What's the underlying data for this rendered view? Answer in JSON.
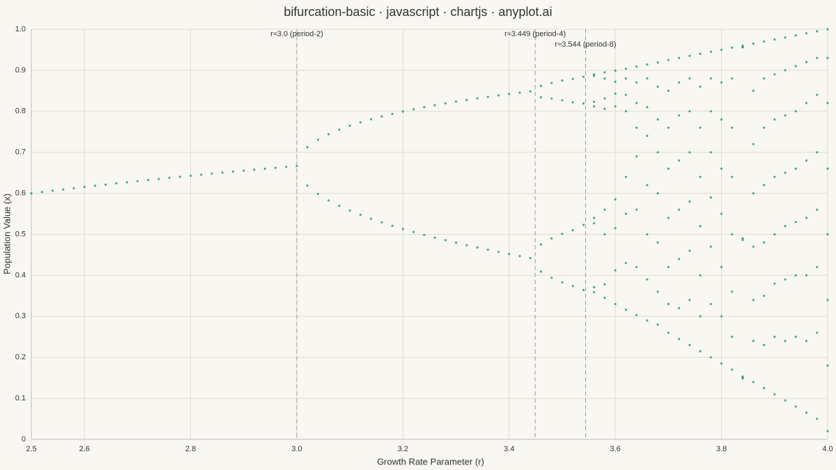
{
  "chart_data": {
    "type": "scatter",
    "title": "bifurcation-basic · javascript · chartjs · anyplot.ai",
    "x_label": "Growth Rate Parameter (r)",
    "y_label": "Population Value (x)",
    "color": "#1a9873",
    "grid": true,
    "xlim": [
      2.5,
      4.0
    ],
    "ylim": [
      0,
      1.0
    ],
    "xticks": [
      2.5,
      2.6,
      2.8,
      {
        "value": 3,
        "label": "3.0"
      },
      3.2,
      3.4,
      3.6,
      3.8,
      {
        "value": 4,
        "label": "4.0"
      }
    ],
    "yticks": [
      0,
      0.1,
      0.2,
      0.3,
      0.4,
      0.5,
      0.6,
      0.7,
      0.8,
      0.9,
      {
        "value": 1,
        "label": "1.0"
      }
    ],
    "annotations": [
      {
        "x": 3.0,
        "label": "r≈3.0 (period-2)"
      },
      {
        "x": 3.449,
        "label": "r≈3.449 (period-4)"
      },
      {
        "x": 3.544,
        "label": "r≈3.544 (period-8)"
      }
    ],
    "x": [
      2.5,
      2.52,
      2.54,
      2.56,
      2.58,
      2.6,
      2.62,
      2.64,
      2.66,
      2.68,
      2.7,
      2.72,
      2.74,
      2.76,
      2.78,
      2.8,
      2.82,
      2.84,
      2.86,
      2.88,
      2.9,
      2.92,
      2.94,
      2.96,
      2.98,
      3.0,
      3.02,
      3.02,
      3.04,
      3.04,
      3.06,
      3.06,
      3.08,
      3.08,
      3.1,
      3.1,
      3.12,
      3.12,
      3.14,
      3.14,
      3.16,
      3.16,
      3.18,
      3.18,
      3.2,
      3.2,
      3.22,
      3.22,
      3.24,
      3.24,
      3.26,
      3.26,
      3.28,
      3.28,
      3.3,
      3.3,
      3.32,
      3.32,
      3.34,
      3.34,
      3.36,
      3.36,
      3.38,
      3.38,
      3.4,
      3.4,
      3.42,
      3.42,
      3.44,
      3.44,
      3.46,
      3.46,
      3.46,
      3.46,
      3.48,
      3.48,
      3.48,
      3.48,
      3.5,
      3.5,
      3.5,
      3.5,
      3.52,
      3.52,
      3.52,
      3.52,
      3.54,
      3.54,
      3.54,
      3.54,
      3.56,
      3.56,
      3.56,
      3.56,
      3.56,
      3.56,
      3.56,
      3.56,
      3.58,
      3.58,
      3.58,
      3.58,
      3.58,
      3.58,
      3.58,
      3.58,
      3.6,
      3.6,
      3.6,
      3.6,
      3.6,
      3.6,
      3.6,
      3.6,
      3.62,
      3.62,
      3.62,
      3.62,
      3.62,
      3.62,
      3.62,
      3.62,
      3.64,
      3.64,
      3.64,
      3.64,
      3.64,
      3.64,
      3.64,
      3.64,
      3.66,
      3.66,
      3.66,
      3.66,
      3.66,
      3.66,
      3.66,
      3.66,
      3.68,
      3.68,
      3.68,
      3.68,
      3.68,
      3.68,
      3.68,
      3.68,
      3.7,
      3.7,
      3.7,
      3.7,
      3.7,
      3.7,
      3.7,
      3.7,
      3.72,
      3.72,
      3.72,
      3.72,
      3.72,
      3.72,
      3.72,
      3.72,
      3.74,
      3.74,
      3.74,
      3.74,
      3.74,
      3.74,
      3.74,
      3.74,
      3.76,
      3.76,
      3.76,
      3.76,
      3.76,
      3.76,
      3.76,
      3.76,
      3.78,
      3.78,
      3.78,
      3.78,
      3.78,
      3.78,
      3.78,
      3.78,
      3.8,
      3.8,
      3.8,
      3.8,
      3.8,
      3.8,
      3.8,
      3.8,
      3.82,
      3.82,
      3.82,
      3.82,
      3.82,
      3.82,
      3.82,
      3.82,
      3.84,
      3.84,
      3.84,
      3.84,
      3.84,
      3.84,
      3.84,
      3.84,
      3.86,
      3.86,
      3.86,
      3.86,
      3.86,
      3.86,
      3.86,
      3.86,
      3.88,
      3.88,
      3.88,
      3.88,
      3.88,
      3.88,
      3.88,
      3.88,
      3.9,
      3.9,
      3.9,
      3.9,
      3.9,
      3.9,
      3.9,
      3.9,
      3.92,
      3.92,
      3.92,
      3.92,
      3.92,
      3.92,
      3.92,
      3.92,
      3.94,
      3.94,
      3.94,
      3.94,
      3.94,
      3.94,
      3.94,
      3.94,
      3.96,
      3.96,
      3.96,
      3.96,
      3.96,
      3.96,
      3.96,
      3.96,
      3.98,
      3.98,
      3.98,
      3.98,
      3.98,
      3.98,
      3.98,
      3.98,
      4.0,
      4.0,
      4.0,
      4.0,
      4.0,
      4.0,
      4.0,
      4.0
    ],
    "values": [
      0.6,
      0.6032,
      0.6063,
      0.6094,
      0.6124,
      0.6154,
      0.6183,
      0.6212,
      0.6241,
      0.6269,
      0.6296,
      0.6324,
      0.635,
      0.6377,
      0.6403,
      0.6429,
      0.6454,
      0.6479,
      0.6503,
      0.6528,
      0.6552,
      0.6575,
      0.6599,
      0.6622,
      0.6644,
      0.6667,
      0.7125,
      0.6186,
      0.7306,
      0.5984,
      0.7441,
      0.5827,
      0.7551,
      0.5696,
      0.7646,
      0.558,
      0.7729,
      0.5476,
      0.7805,
      0.538,
      0.7873,
      0.5292,
      0.7936,
      0.5208,
      0.7995,
      0.513,
      0.8049,
      0.5057,
      0.81,
      0.4986,
      0.8148,
      0.492,
      0.8193,
      0.4856,
      0.8236,
      0.4794,
      0.8277,
      0.4735,
      0.8316,
      0.4679,
      0.8352,
      0.4624,
      0.8388,
      0.4571,
      0.8422,
      0.452,
      0.8454,
      0.447,
      0.8485,
      0.4422,
      0.862,
      0.834,
      0.475,
      0.409,
      0.869,
      0.831,
      0.49,
      0.394,
      0.875,
      0.8269,
      0.5009,
      0.3828,
      0.879,
      0.822,
      0.51,
      0.374,
      0.884,
      0.819,
      0.523,
      0.364,
      0.89,
      0.886,
      0.823,
      0.812,
      0.54,
      0.527,
      0.371,
      0.359,
      0.895,
      0.88,
      0.831,
      0.806,
      0.56,
      0.5,
      0.378,
      0.345,
      0.899,
      0.872,
      0.843,
      0.812,
      0.585,
      0.515,
      0.412,
      0.33,
      0.904,
      0.88,
      0.84,
      0.8,
      0.64,
      0.55,
      0.43,
      0.316,
      0.909,
      0.87,
      0.82,
      0.76,
      0.69,
      0.56,
      0.42,
      0.303,
      0.914,
      0.88,
      0.81,
      0.74,
      0.62,
      0.5,
      0.39,
      0.29,
      0.919,
      0.86,
      0.78,
      0.7,
      0.6,
      0.48,
      0.36,
      0.28,
      0.925,
      0.85,
      0.76,
      0.66,
      0.54,
      0.42,
      0.33,
      0.26,
      0.93,
      0.87,
      0.79,
      0.68,
      0.56,
      0.44,
      0.32,
      0.245,
      0.935,
      0.88,
      0.8,
      0.7,
      0.58,
      0.46,
      0.34,
      0.23,
      0.94,
      0.86,
      0.76,
      0.64,
      0.52,
      0.4,
      0.3,
      0.215,
      0.945,
      0.88,
      0.8,
      0.7,
      0.59,
      0.47,
      0.33,
      0.2,
      0.95,
      0.87,
      0.78,
      0.66,
      0.55,
      0.42,
      0.3,
      0.185,
      0.955,
      0.88,
      0.76,
      0.64,
      0.5,
      0.36,
      0.25,
      0.17,
      0.96,
      0.957,
      0.956,
      0.49,
      0.486,
      0.153,
      0.15,
      0.149,
      0.965,
      0.85,
      0.72,
      0.6,
      0.47,
      0.34,
      0.24,
      0.14,
      0.97,
      0.88,
      0.76,
      0.62,
      0.48,
      0.35,
      0.23,
      0.125,
      0.975,
      0.89,
      0.78,
      0.64,
      0.5,
      0.38,
      0.25,
      0.11,
      0.98,
      0.9,
      0.79,
      0.65,
      0.52,
      0.39,
      0.24,
      0.095,
      0.985,
      0.91,
      0.8,
      0.66,
      0.53,
      0.4,
      0.25,
      0.08,
      0.99,
      0.92,
      0.82,
      0.68,
      0.54,
      0.4,
      0.24,
      0.065,
      0.995,
      0.93,
      0.84,
      0.7,
      0.56,
      0.42,
      0.26,
      0.05,
      1.0,
      0.93,
      0.82,
      0.66,
      0.5,
      0.34,
      0.18,
      0.02
    ]
  }
}
